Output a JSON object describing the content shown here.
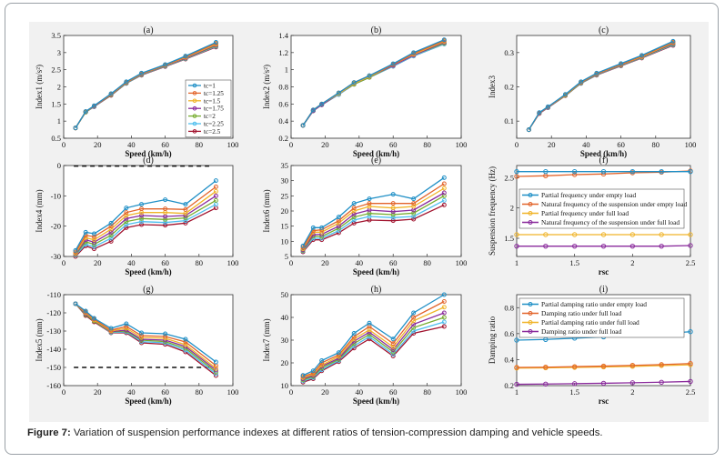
{
  "caption": {
    "label": "Figure 7:",
    "text": " Variation of suspension performance indexes at different ratios of tension-compression damping and vehicle speeds."
  },
  "colors": {
    "tc1": "#1f8fc6",
    "tc125": "#e2642b",
    "tc15": "#f0b429",
    "tc175": "#8a2b9c",
    "tc2": "#77ac30",
    "tc225": "#4dbeee",
    "tc25": "#a2142f",
    "empty_freq": "#1f8fc6",
    "empty_nat": "#e2642b",
    "full_freq": "#f0b429",
    "full_nat": "#8a2b9c"
  },
  "chart_data": [
    {
      "panel": "(a)",
      "type": "line",
      "xlabel": "Speed (km/h)",
      "ylabel": "Index1 (m/s²)",
      "xlim": [
        0,
        100
      ],
      "ylim": [
        0.5,
        3.5
      ],
      "xticks": [
        "0",
        "20",
        "40",
        "60",
        "80",
        "100"
      ],
      "yticks": [
        "0.5",
        "1",
        "1.5",
        "2",
        "2.5",
        "3",
        "3.5"
      ],
      "x": [
        7,
        13,
        18,
        28,
        37,
        46,
        60,
        72,
        90
      ],
      "legend": {
        "placement": "inside right"
      },
      "series": [
        {
          "name": "tc=1",
          "values": [
            0.8,
            1.28,
            1.45,
            1.8,
            2.15,
            2.4,
            2.65,
            2.9,
            3.3
          ]
        },
        {
          "name": "tc=1.25",
          "values": [
            0.8,
            1.28,
            1.44,
            1.79,
            2.14,
            2.39,
            2.64,
            2.88,
            3.27
          ]
        },
        {
          "name": "tc=1.5",
          "values": [
            0.8,
            1.27,
            1.44,
            1.78,
            2.13,
            2.38,
            2.63,
            2.86,
            3.24
          ]
        },
        {
          "name": "tc=1.75",
          "values": [
            0.8,
            1.27,
            1.43,
            1.77,
            2.12,
            2.37,
            2.62,
            2.84,
            3.22
          ]
        },
        {
          "name": "tc=2",
          "values": [
            0.8,
            1.26,
            1.43,
            1.76,
            2.11,
            2.36,
            2.61,
            2.83,
            3.2
          ]
        },
        {
          "name": "tc=2.25",
          "values": [
            0.8,
            1.26,
            1.42,
            1.76,
            2.1,
            2.35,
            2.6,
            2.82,
            3.18
          ]
        },
        {
          "name": "tc=2.5",
          "values": [
            0.8,
            1.26,
            1.42,
            1.75,
            2.1,
            2.34,
            2.59,
            2.81,
            3.16
          ]
        }
      ]
    },
    {
      "panel": "(b)",
      "type": "line",
      "xlabel": "Speed (km/h)",
      "ylabel": "Index2 (m/s²)",
      "xlim": [
        0,
        100
      ],
      "ylim": [
        0.2,
        1.4
      ],
      "xticks": [
        "0",
        "20",
        "40",
        "60",
        "80",
        "100"
      ],
      "yticks": [
        "0.2",
        "0.4",
        "0.6",
        "0.8",
        "1",
        "1.2",
        "1.4"
      ],
      "x": [
        7,
        13,
        18,
        28,
        37,
        46,
        60,
        72,
        90
      ],
      "series": [
        {
          "values": [
            0.35,
            0.53,
            0.6,
            0.73,
            0.85,
            0.93,
            1.07,
            1.2,
            1.35
          ]
        },
        {
          "values": [
            0.35,
            0.53,
            0.6,
            0.73,
            0.85,
            0.93,
            1.06,
            1.19,
            1.34
          ]
        },
        {
          "values": [
            0.35,
            0.53,
            0.6,
            0.72,
            0.84,
            0.92,
            1.06,
            1.18,
            1.33
          ]
        },
        {
          "values": [
            0.35,
            0.52,
            0.59,
            0.72,
            0.84,
            0.92,
            1.05,
            1.17,
            1.32
          ]
        },
        {
          "values": [
            0.35,
            0.52,
            0.59,
            0.72,
            0.83,
            0.91,
            1.05,
            1.17,
            1.31
          ]
        },
        {
          "values": [
            0.35,
            0.52,
            0.59,
            0.71,
            0.83,
            0.91,
            1.04,
            1.16,
            1.3
          ]
        },
        {
          "values": [
            0.35,
            0.52,
            0.59,
            0.71,
            0.83,
            0.91,
            1.04,
            1.16,
            1.3
          ]
        }
      ]
    },
    {
      "panel": "(c)",
      "type": "line",
      "xlabel": "Speed (km/h)",
      "ylabel": "Index3",
      "xlim": [
        0,
        100
      ],
      "ylim": [
        0.05,
        0.35
      ],
      "xticks": [
        "0",
        "20",
        "40",
        "60",
        "80",
        "100"
      ],
      "yticks": [
        "0.1",
        "0.2",
        "0.3"
      ],
      "x": [
        7,
        13,
        18,
        28,
        37,
        46,
        60,
        72,
        90
      ],
      "series": [
        {
          "values": [
            0.075,
            0.125,
            0.142,
            0.178,
            0.215,
            0.24,
            0.268,
            0.292,
            0.333
          ]
        },
        {
          "values": [
            0.075,
            0.124,
            0.141,
            0.177,
            0.214,
            0.239,
            0.266,
            0.29,
            0.331
          ]
        },
        {
          "values": [
            0.075,
            0.124,
            0.141,
            0.176,
            0.213,
            0.238,
            0.265,
            0.288,
            0.329
          ]
        },
        {
          "values": [
            0.075,
            0.123,
            0.14,
            0.176,
            0.212,
            0.237,
            0.264,
            0.287,
            0.327
          ]
        },
        {
          "values": [
            0.075,
            0.123,
            0.14,
            0.175,
            0.211,
            0.236,
            0.263,
            0.286,
            0.325
          ]
        },
        {
          "values": [
            0.075,
            0.123,
            0.139,
            0.175,
            0.21,
            0.235,
            0.262,
            0.285,
            0.323
          ]
        },
        {
          "values": [
            0.075,
            0.122,
            0.139,
            0.174,
            0.21,
            0.234,
            0.261,
            0.284,
            0.321
          ]
        }
      ]
    },
    {
      "panel": "(d)",
      "type": "line",
      "xlabel": "Speed (km/h)",
      "ylabel": "Index4 (mm)",
      "xlim": [
        0,
        100
      ],
      "ylim": [
        -30,
        0
      ],
      "xticks": [
        "0",
        "20",
        "40",
        "60",
        "80",
        "100"
      ],
      "yticks": [
        "-30",
        "-20",
        "-10",
        "0"
      ],
      "x": [
        7,
        13,
        18,
        28,
        37,
        46,
        60,
        72,
        90
      ],
      "reference_line": -0.2,
      "series": [
        {
          "values": [
            -28,
            -22,
            -22.5,
            -19,
            -14,
            -12.8,
            -11.3,
            -12.8,
            -5
          ]
        },
        {
          "values": [
            -28.5,
            -23,
            -23.5,
            -20,
            -15.5,
            -14.3,
            -14.3,
            -14.5,
            -7
          ]
        },
        {
          "values": [
            -29,
            -23.8,
            -24.5,
            -21,
            -16.5,
            -15.5,
            -15.5,
            -15.8,
            -8.5
          ]
        },
        {
          "values": [
            -29.2,
            -24.5,
            -25.3,
            -22,
            -17.5,
            -16.5,
            -16.8,
            -16.5,
            -10
          ]
        },
        {
          "values": [
            -29.4,
            -25.2,
            -26,
            -23,
            -18.5,
            -17.5,
            -17.8,
            -17.3,
            -11.5
          ]
        },
        {
          "values": [
            -29.6,
            -26,
            -26.8,
            -24,
            -19.5,
            -18.5,
            -18.8,
            -18.2,
            -12.8
          ]
        },
        {
          "values": [
            -30,
            -26.5,
            -27.5,
            -25,
            -20.5,
            -19.5,
            -19.7,
            -19,
            -14
          ]
        }
      ]
    },
    {
      "panel": "(e)",
      "type": "line",
      "xlabel": "Speed (km/h)",
      "ylabel": "Index6 (mm)",
      "xlim": [
        0,
        100
      ],
      "ylim": [
        5,
        35
      ],
      "xticks": [
        "0",
        "20",
        "40",
        "60",
        "80",
        "100"
      ],
      "yticks": [
        "5",
        "10",
        "15",
        "20",
        "25",
        "30",
        "35"
      ],
      "x": [
        7,
        13,
        18,
        28,
        37,
        46,
        60,
        72,
        90
      ],
      "series": [
        {
          "values": [
            8.5,
            14.5,
            14.5,
            18,
            22.5,
            24,
            25.5,
            24,
            31
          ]
        },
        {
          "values": [
            8,
            13.5,
            13.8,
            16.8,
            21,
            22.5,
            22.5,
            22.5,
            29
          ]
        },
        {
          "values": [
            7.5,
            13,
            13,
            16,
            20,
            21.5,
            21,
            21.5,
            27.5
          ]
        },
        {
          "values": [
            7.2,
            12.2,
            12.3,
            15,
            19,
            20.3,
            19.8,
            20.3,
            26
          ]
        },
        {
          "values": [
            7,
            11.7,
            11.6,
            14.3,
            18,
            19.2,
            18.8,
            19.3,
            25
          ]
        },
        {
          "values": [
            6.8,
            11,
            11,
            13.5,
            17,
            18.2,
            17.8,
            18.2,
            23.5
          ]
        },
        {
          "values": [
            6.5,
            10.5,
            10.5,
            12.8,
            16,
            17,
            16.8,
            17.3,
            22
          ]
        }
      ]
    },
    {
      "panel": "(f)",
      "type": "line",
      "xlabel": "rsc",
      "ylabel": "Suspension frequency (Hz)",
      "xlim": [
        1,
        2.5
      ],
      "ylim": [
        1.2,
        2.7
      ],
      "xticks": [
        "1",
        "1.5",
        "2",
        "2.5"
      ],
      "yticks": [
        "1.5",
        "2",
        "2.5"
      ],
      "x": [
        1,
        1.25,
        1.5,
        1.75,
        2,
        2.25,
        2.5
      ],
      "legend": {
        "placement": "inside top"
      },
      "series": [
        {
          "name": "Partial frequency under empty load",
          "values": [
            2.6,
            2.6,
            2.6,
            2.6,
            2.6,
            2.6,
            2.6
          ]
        },
        {
          "name": "Natural frequency of the suspension under empty load",
          "values": [
            2.52,
            2.53,
            2.55,
            2.56,
            2.58,
            2.59,
            2.61
          ]
        },
        {
          "name": "Partial frequency under full load",
          "values": [
            1.56,
            1.56,
            1.56,
            1.56,
            1.56,
            1.56,
            1.56
          ]
        },
        {
          "name": "Natural frequency of the suspension under full load",
          "values": [
            1.37,
            1.37,
            1.37,
            1.37,
            1.37,
            1.37,
            1.38
          ]
        }
      ]
    },
    {
      "panel": "(g)",
      "type": "line",
      "xlabel": "Speed (km/h)",
      "ylabel": "Index5 (mm)",
      "xlim": [
        0,
        100
      ],
      "ylim": [
        -160,
        -110
      ],
      "xticks": [
        "0",
        "20",
        "40",
        "60",
        "80",
        "100"
      ],
      "yticks": [
        "-160",
        "-150",
        "-140",
        "-130",
        "-120",
        "-110"
      ],
      "x": [
        7,
        13,
        18,
        28,
        37,
        46,
        60,
        72,
        90
      ],
      "reference_line": -150,
      "series": [
        {
          "values": [
            -115,
            -119,
            -123,
            -128.5,
            -126,
            -131,
            -131.5,
            -134.5,
            -147
          ]
        },
        {
          "values": [
            -115,
            -119.5,
            -123.5,
            -129.5,
            -127.5,
            -132.5,
            -133,
            -136,
            -149
          ]
        },
        {
          "values": [
            -115,
            -120,
            -124,
            -130,
            -128.5,
            -133.5,
            -134,
            -137.5,
            -150.5
          ]
        },
        {
          "values": [
            -115,
            -120.5,
            -124,
            -130.3,
            -129.5,
            -134.5,
            -135,
            -138.5,
            -151.5
          ]
        },
        {
          "values": [
            -115,
            -121,
            -124.5,
            -130.5,
            -130,
            -135,
            -135.8,
            -139.5,
            -152.5
          ]
        },
        {
          "values": [
            -115,
            -121,
            -124.5,
            -130.8,
            -130.5,
            -135.8,
            -136.5,
            -140.5,
            -153.5
          ]
        },
        {
          "values": [
            -115,
            -121.5,
            -125,
            -131,
            -131,
            -136.5,
            -137.3,
            -141.5,
            -154.5
          ]
        }
      ]
    },
    {
      "panel": "(h)",
      "type": "line",
      "xlabel": "Speed (km/h)",
      "ylabel": "Index7 (mm)",
      "xlim": [
        0,
        100
      ],
      "ylim": [
        10,
        50
      ],
      "xticks": [
        "0",
        "20",
        "40",
        "60",
        "80",
        "100"
      ],
      "yticks": [
        "10",
        "20",
        "30",
        "40",
        "50"
      ],
      "x": [
        7,
        13,
        18,
        28,
        37,
        46,
        60,
        72,
        90
      ],
      "series": [
        {
          "values": [
            14.5,
            16.5,
            21,
            24.5,
            33,
            37.5,
            30.5,
            42,
            50
          ]
        },
        {
          "values": [
            14,
            15.5,
            20,
            23.5,
            31.5,
            36,
            28.5,
            40,
            47
          ]
        },
        {
          "values": [
            13.5,
            15,
            19,
            22.8,
            30.5,
            34.5,
            27,
            38.5,
            44.5
          ]
        },
        {
          "values": [
            13,
            14.5,
            18.5,
            22,
            29.5,
            33.5,
            25.8,
            37,
            42
          ]
        },
        {
          "values": [
            12.5,
            14,
            17.8,
            21.5,
            28.5,
            32.5,
            24.8,
            35.5,
            40
          ]
        },
        {
          "values": [
            12,
            13.5,
            17,
            21,
            27.5,
            31.5,
            23.8,
            34,
            38
          ]
        },
        {
          "values": [
            11.5,
            13,
            16.5,
            20.5,
            26.5,
            30.5,
            23,
            33,
            36
          ]
        }
      ]
    },
    {
      "panel": "(i)",
      "type": "line",
      "xlabel": "rsc",
      "ylabel": "Damping ratio",
      "xlim": [
        1,
        2.5
      ],
      "ylim": [
        0.2,
        0.9
      ],
      "xticks": [
        "1",
        "1.5",
        "2",
        "2.5"
      ],
      "yticks": [
        "0.2",
        "0.4",
        "0.6",
        "0.8"
      ],
      "x": [
        1,
        1.25,
        1.5,
        1.75,
        2,
        2.25,
        2.5
      ],
      "legend": {
        "placement": "inside top"
      },
      "series": [
        {
          "name": "Partial damping ratio under empty load",
          "values": [
            0.55,
            0.555,
            0.565,
            0.575,
            0.59,
            0.6,
            0.615
          ]
        },
        {
          "name": "Damping ratio under full load",
          "values": [
            0.34,
            0.342,
            0.346,
            0.35,
            0.356,
            0.362,
            0.37
          ]
        },
        {
          "name": "Partial damping ratio under full load",
          "values": [
            0.335,
            0.337,
            0.34,
            0.344,
            0.348,
            0.354,
            0.36
          ]
        },
        {
          "name": "Damping ratio under full load",
          "values": [
            0.21,
            0.212,
            0.215,
            0.218,
            0.222,
            0.226,
            0.232
          ]
        }
      ]
    }
  ]
}
